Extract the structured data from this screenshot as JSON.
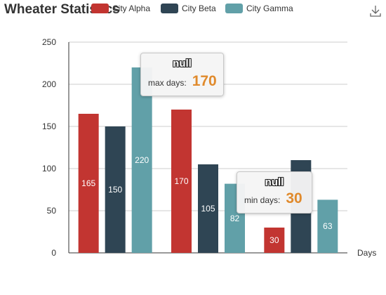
{
  "chart_data": {
    "type": "bar",
    "title": "Wheater Statistics",
    "xlabel": "Days",
    "ylabel": "",
    "ylim": [
      0,
      250
    ],
    "yticks": [
      0,
      50,
      100,
      150,
      200,
      250
    ],
    "categories": [
      "",
      "",
      ""
    ],
    "series": [
      {
        "name": "City Alpha",
        "color": "#c23531",
        "values": [
          165,
          170,
          30
        ]
      },
      {
        "name": "City Beta",
        "color": "#2f4554",
        "values": [
          150,
          105,
          110
        ]
      },
      {
        "name": "City Gamma",
        "color": "#61a0a8",
        "values": [
          220,
          82,
          63
        ]
      }
    ],
    "data_labels": [
      [
        "165",
        "170",
        "30"
      ],
      [
        "150",
        "105",
        ""
      ],
      [
        "220",
        "82",
        "63"
      ]
    ],
    "grid": true,
    "legend_position": "top"
  },
  "tooltips": [
    {
      "title": "null",
      "label": "max days:",
      "value": "170"
    },
    {
      "title": "null",
      "label": "min days:",
      "value": "30"
    }
  ],
  "toolbar": {
    "icon": "download-icon"
  }
}
